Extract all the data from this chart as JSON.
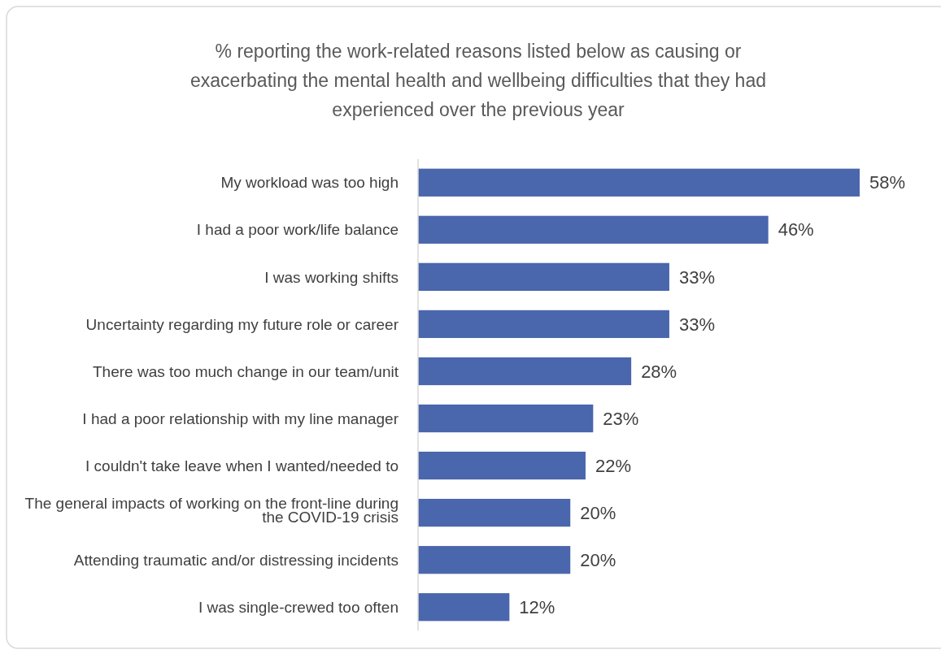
{
  "chart_data": {
    "type": "bar",
    "orientation": "horizontal",
    "title": "% reporting the work-related reasons listed below as causing or exacerbating the mental health and wellbeing difficulties that they had experienced over the previous year",
    "categories": [
      "My workload was too high",
      "I had a poor work/life balance",
      "I was working shifts",
      "Uncertainty regarding my future role or career",
      "There was too much change in our team/unit",
      "I had a poor relationship with my line manager",
      "I couldn't take leave when I wanted/needed to",
      "The general impacts of working on the front-line during the COVID-19 crisis",
      "Attending traumatic and/or distressing incidents",
      "I was single-crewed too often"
    ],
    "values": [
      58,
      46,
      33,
      33,
      28,
      23,
      22,
      20,
      20,
      12
    ],
    "value_labels": [
      "58%",
      "46%",
      "33%",
      "33%",
      "28%",
      "23%",
      "22%",
      "20%",
      "20%",
      "12%"
    ],
    "color": "#4a66ac"
  }
}
